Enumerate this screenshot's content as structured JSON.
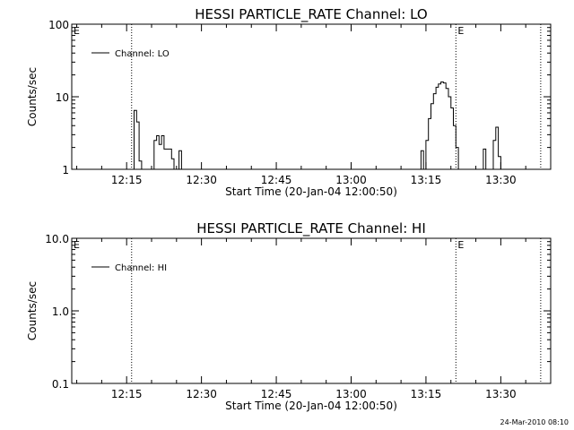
{
  "footer": {
    "timestamp": "24-Mar-2010 08:10"
  },
  "chart_data": [
    {
      "type": "line",
      "title": "HESSI PARTICLE_RATE Channel: LO",
      "xlabel": "Start Time (20-Jan-04 12:00:50)",
      "ylabel": "Counts/sec",
      "yscale": "log",
      "ylim": [
        1,
        100
      ],
      "xlim": [
        "12:04",
        "13:40"
      ],
      "x_ticks": [
        "12:15",
        "12:30",
        "12:45",
        "13:00",
        "13:15",
        "13:30"
      ],
      "y_ticks": [
        "1",
        "10",
        "100"
      ],
      "grid": false,
      "legend": {
        "position": "top-left",
        "entries": [
          "Channel: LO"
        ]
      },
      "annotations": [
        {
          "text": "E",
          "x": "12:04"
        },
        {
          "text": "E",
          "x": "13:21"
        }
      ],
      "vertical_markers": [
        "12:16",
        "13:21",
        "13:38"
      ],
      "series": [
        {
          "name": "Channel: LO",
          "points": [
            [
              "12:16.0",
              1
            ],
            [
              "12:16.5",
              6.5
            ],
            [
              "12:17.0",
              4.5
            ],
            [
              "12:17.5",
              1.3
            ],
            [
              "12:18.0",
              1
            ],
            [
              "12:20.0",
              1
            ],
            [
              "12:20.5",
              2.5
            ],
            [
              "12:21.0",
              2.9
            ],
            [
              "12:21.5",
              2.2
            ],
            [
              "12:22.0",
              2.9
            ],
            [
              "12:22.5",
              1.9
            ],
            [
              "12:23.0",
              1.9
            ],
            [
              "12:23.5",
              1.9
            ],
            [
              "12:24.0",
              1.4
            ],
            [
              "12:24.5",
              1
            ],
            [
              "12:25.0",
              1
            ],
            [
              "12:25.5",
              1.8
            ],
            [
              "12:26.0",
              1
            ],
            [
              "13:13.5",
              1
            ],
            [
              "13:14.0",
              1.8
            ],
            [
              "13:14.5",
              1
            ],
            [
              "13:15.0",
              2.5
            ],
            [
              "13:15.5",
              5
            ],
            [
              "13:16.0",
              8
            ],
            [
              "13:16.5",
              11
            ],
            [
              "13:17.0",
              13.5
            ],
            [
              "13:17.5",
              15
            ],
            [
              "13:18.0",
              16
            ],
            [
              "13:18.5",
              15.5
            ],
            [
              "13:19.0",
              13
            ],
            [
              "13:19.5",
              10
            ],
            [
              "13:20.0",
              7
            ],
            [
              "13:20.5",
              4
            ],
            [
              "13:21.0",
              2
            ],
            [
              "13:21.5",
              1
            ],
            [
              "13:26.0",
              1
            ],
            [
              "13:26.5",
              1.9
            ],
            [
              "13:27.0",
              1
            ],
            [
              "13:28.0",
              1
            ],
            [
              "13:28.5",
              2.5
            ],
            [
              "13:29.0",
              3.8
            ],
            [
              "13:29.5",
              1.5
            ],
            [
              "13:30.0",
              1
            ]
          ]
        }
      ]
    },
    {
      "type": "line",
      "title": "HESSI PARTICLE_RATE Channel: HI",
      "xlabel": "Start Time (20-Jan-04 12:00:50)",
      "ylabel": "Counts/sec",
      "yscale": "log",
      "ylim": [
        0.1,
        10
      ],
      "xlim": [
        "12:04",
        "13:40"
      ],
      "x_ticks": [
        "12:15",
        "12:30",
        "12:45",
        "13:00",
        "13:15",
        "13:30"
      ],
      "y_ticks": [
        "0.1",
        "1.0",
        "10.0"
      ],
      "grid": false,
      "legend": {
        "position": "top-left",
        "entries": [
          "Channel: HI"
        ]
      },
      "annotations": [
        {
          "text": "E",
          "x": "12:04"
        },
        {
          "text": "E",
          "x": "13:21"
        }
      ],
      "vertical_markers": [
        "12:16",
        "13:21",
        "13:38"
      ],
      "series": [
        {
          "name": "Channel: HI",
          "points": []
        }
      ]
    }
  ]
}
